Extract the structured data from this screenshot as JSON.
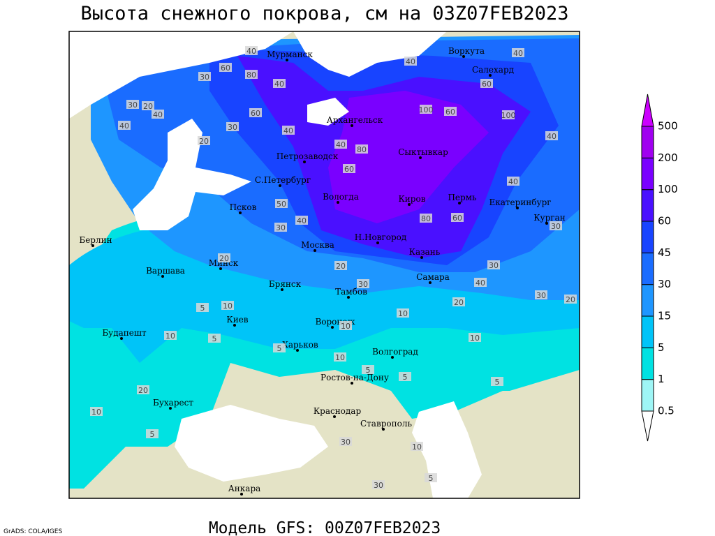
{
  "title": "Высота снежного покрова, см на 03Z07FEB2023",
  "footer": "Модель GFS: 00Z07FEB2023",
  "credit": "GrADS: COLA/IGES",
  "legend": {
    "levels": [
      0.5,
      1,
      5,
      15,
      30,
      45,
      60,
      100,
      200,
      500
    ],
    "colors": [
      "#ffffff",
      "#9ef5f5",
      "#00e2e2",
      "#00c4f8",
      "#1e96ff",
      "#1a6cff",
      "#1844ff",
      "#4a10ff",
      "#7a00ff",
      "#a000f0",
      "#cc00ff"
    ]
  },
  "cities": [
    "Мурманск",
    "Воркута",
    "Салехард",
    "Архангельск",
    "Петрозаводск",
    "Сыктывкар",
    "С.Петербург",
    "Вологда",
    "Киров",
    "Пермь",
    "Екатеринбург",
    "Курган",
    "Псков",
    "Берлин",
    "Н.Новгород",
    "Москва",
    "Казань",
    "Минск",
    "Варшава",
    "Самара",
    "Брянск",
    "Тамбов",
    "Киев",
    "Воронеж",
    "Будапешт",
    "Харьков",
    "Волгоград",
    "Ростов-на-Дону",
    "Бухарест",
    "Краснодар",
    "Ставрополь",
    "Анкара"
  ],
  "contour_labels": [
    40,
    60,
    80,
    40,
    30,
    40,
    20,
    40,
    30,
    60,
    40,
    20,
    30,
    100,
    100,
    60,
    40,
    40,
    60,
    40,
    80,
    40,
    60,
    40,
    50,
    30,
    40,
    80,
    60,
    30,
    20,
    20,
    30,
    30,
    40,
    30,
    20,
    20,
    10,
    10,
    5,
    10,
    10,
    5,
    10,
    10,
    5,
    5,
    5,
    5,
    20,
    10,
    5,
    30,
    10,
    30,
    5
  ]
}
